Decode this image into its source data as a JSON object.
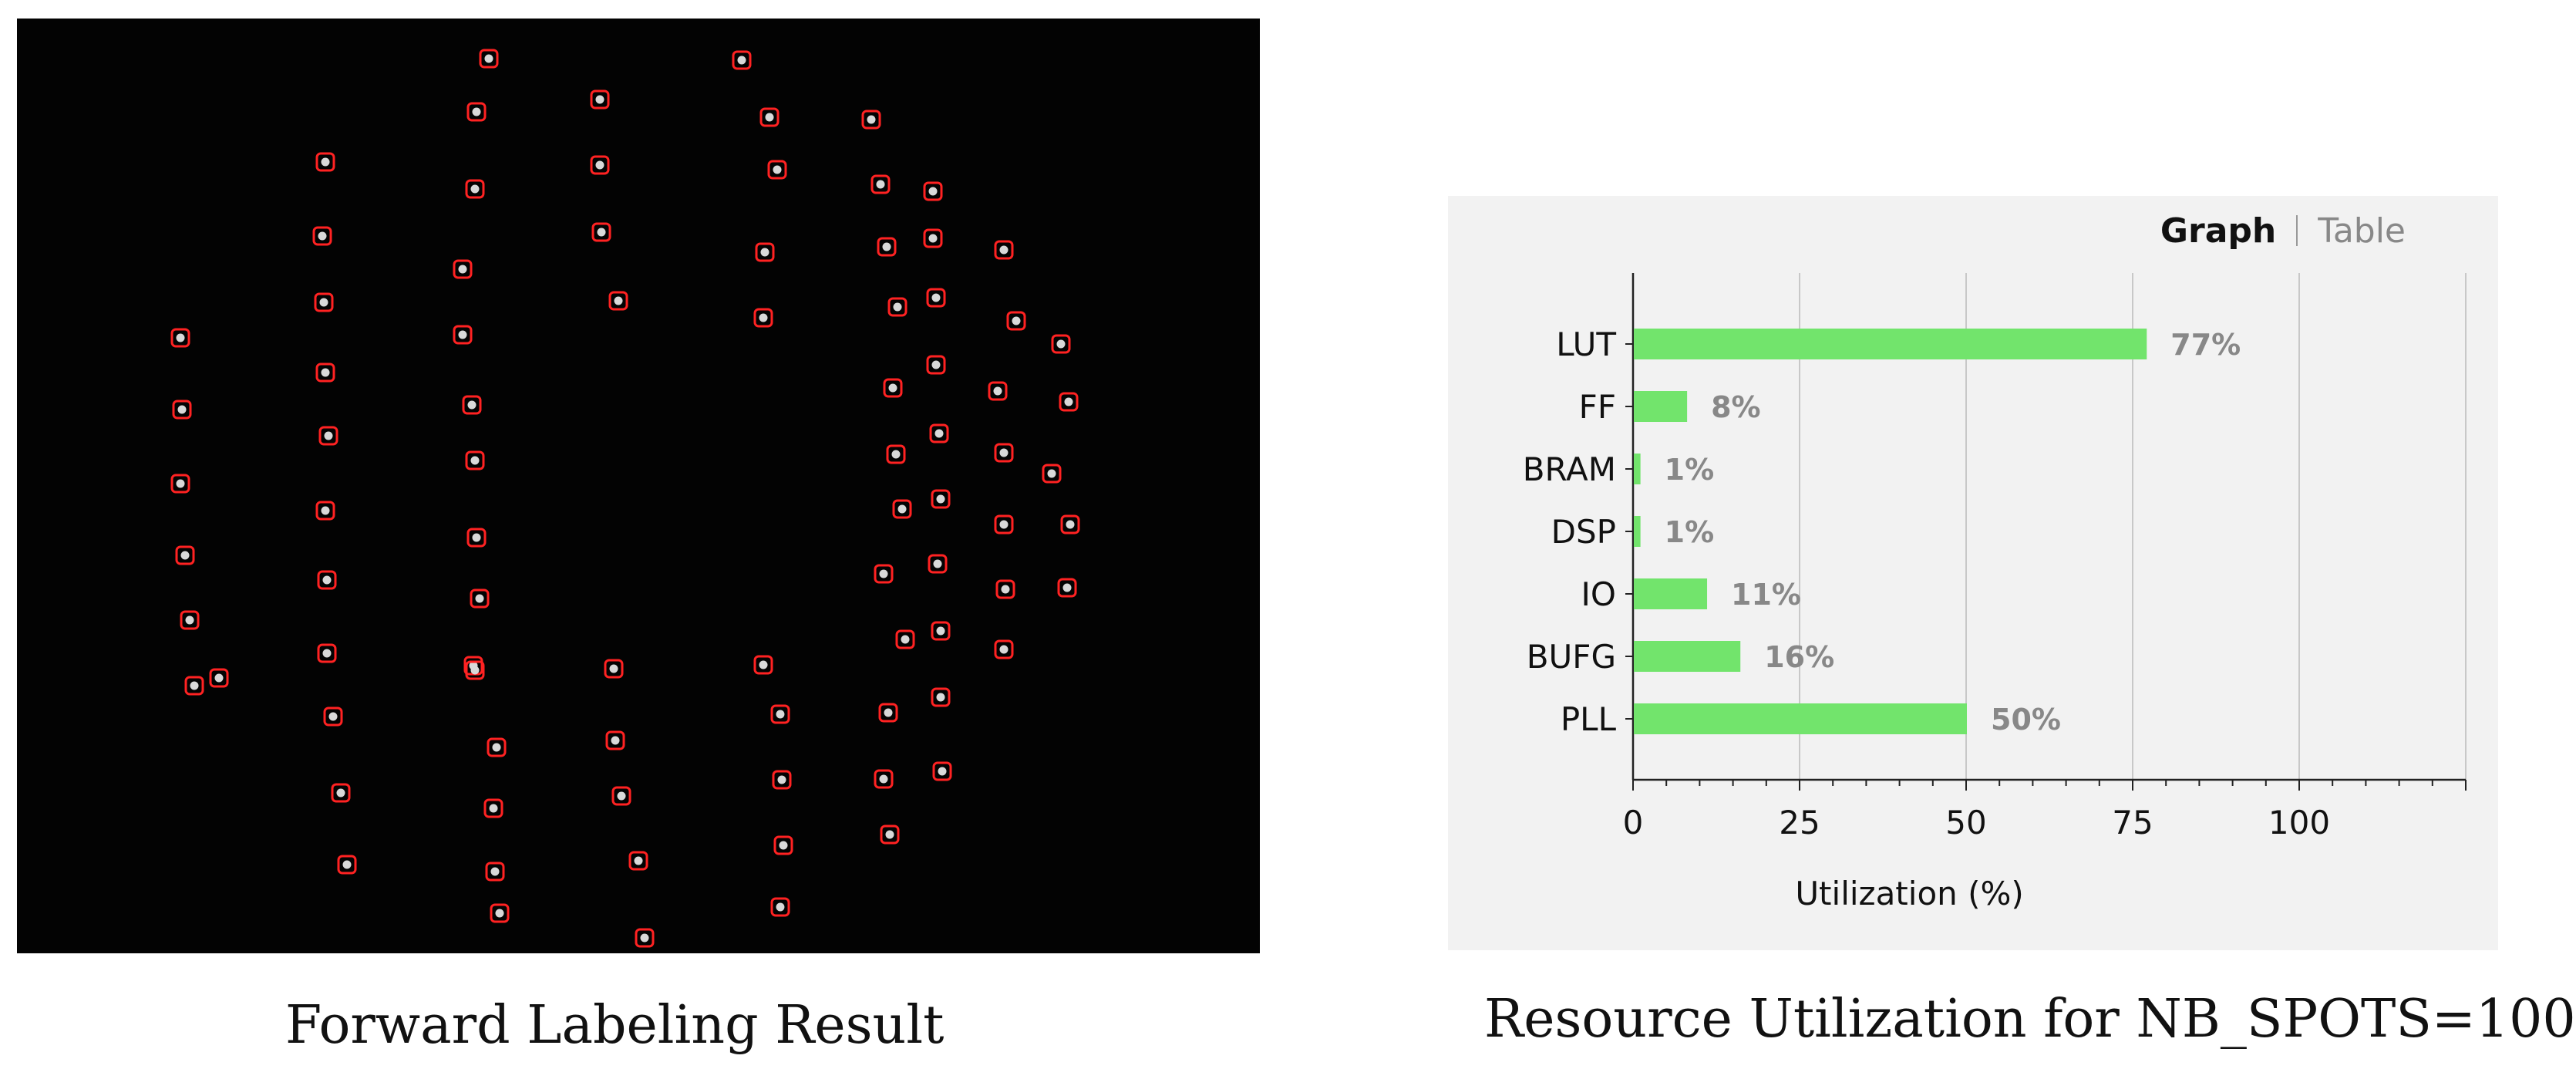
{
  "captions": {
    "left": "Forward Labeling Result",
    "right": "Resource Utilization for NB_SPOTS=100"
  },
  "tabs": {
    "graph": "Graph",
    "table": "Table"
  },
  "colors": {
    "bar": "#72e46c",
    "spot_box": "#ff2222",
    "panel_bg": "#f2f2f2",
    "image_bg": "#030303"
  },
  "chart_data": {
    "type": "bar",
    "orientation": "horizontal",
    "title": "Resource Utilization for NB_SPOTS=100",
    "categories": [
      "LUT",
      "FF",
      "BRAM",
      "DSP",
      "IO",
      "BUFG",
      "PLL"
    ],
    "values": [
      77,
      8,
      1,
      1,
      11,
      16,
      50
    ],
    "value_labels": [
      "77%",
      "8%",
      "1%",
      "1%",
      "11%",
      "16%",
      "50%"
    ],
    "xlabel": "Utilization (%)",
    "ylabel": "",
    "xlim": [
      0,
      125
    ],
    "xticks": [
      0,
      25,
      50,
      75,
      100
    ],
    "grid": "vertical"
  }
}
